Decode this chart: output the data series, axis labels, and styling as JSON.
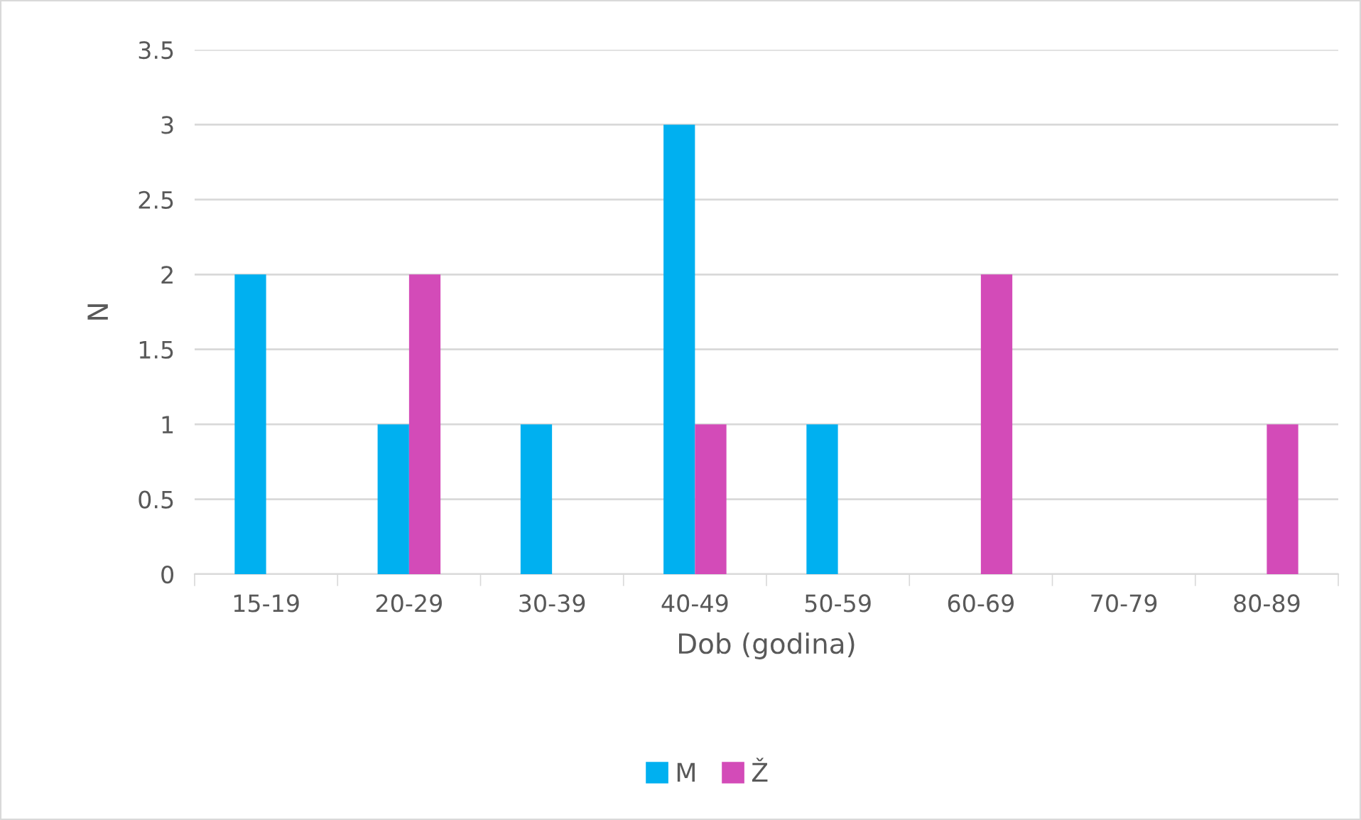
{
  "chart_data": {
    "type": "bar",
    "xlabel": "Dob (godina)",
    "ylabel": "N",
    "categories": [
      "15-19",
      "20-29",
      "30-39",
      "40-49",
      "50-59",
      "60-69",
      "70-79",
      "80-89"
    ],
    "series": [
      {
        "name": "M",
        "color": "#00b0f0",
        "values": [
          2,
          1,
          1,
          3,
          1,
          0,
          0,
          0
        ]
      },
      {
        "name": "Ž",
        "color": "#d34bb8",
        "values": [
          0,
          2,
          0,
          1,
          0,
          2,
          0,
          1
        ]
      }
    ],
    "ylim": [
      0,
      3.5
    ],
    "yticks": [
      0,
      0.5,
      1,
      1.5,
      2,
      2.5,
      3,
      3.5
    ],
    "grid": "y",
    "legend": "bottom"
  }
}
